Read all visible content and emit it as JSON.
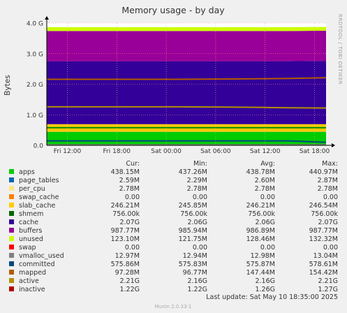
{
  "chart_data": {
    "type": "area",
    "title": "Memory usage - by day",
    "ylabel": "Bytes",
    "side_label": "RRDTOOL / TOBI OETIKER",
    "yticks": [
      "0.0",
      "1.0 G",
      "2.0 G",
      "3.0 G",
      "4.0 G"
    ],
    "ytick_values": [
      0,
      1,
      2,
      3,
      4
    ],
    "ylim": [
      0,
      4.0
    ],
    "xticks": [
      "Fri 12:00",
      "Fri 18:00",
      "Sat 00:00",
      "Sat 06:00",
      "Sat 12:00",
      "Sat 18:00"
    ],
    "xtick_hours": [
      12,
      18,
      24,
      30,
      36,
      42
    ],
    "xlim_hours": [
      9.5,
      43.4
    ],
    "series": [
      {
        "name": "apps",
        "color": "#00cc00",
        "kind": "area",
        "values_gb": [
          0.441,
          0.441,
          0.441,
          0.441,
          0.441,
          0.441,
          0.441,
          0.441
        ]
      },
      {
        "name": "page_tables",
        "color": "#0066b3",
        "kind": "area",
        "values_gb": [
          0.003,
          0.003,
          0.003,
          0.003,
          0.003,
          0.003,
          0.003,
          0.003
        ]
      },
      {
        "name": "per_cpu",
        "color": "#ff8000",
        "kind": "area",
        "values_gb": [
          0.003,
          0.003,
          0.003,
          0.003,
          0.003,
          0.003,
          0.003,
          0.003
        ]
      },
      {
        "name": "swap_cache",
        "color": "#ffcc00",
        "kind": "area",
        "values_gb": [
          0.0,
          0.0,
          0.0,
          0.0,
          0.0,
          0.0,
          0.0,
          0.0
        ]
      },
      {
        "name": "slab_cache",
        "color": "#ffcc00",
        "kind": "area",
        "values_gb": [
          0.245,
          0.245,
          0.245,
          0.245,
          0.245,
          0.245,
          0.245,
          0.245
        ]
      },
      {
        "name": "shmem",
        "color": "#330099",
        "kind": "area",
        "values_gb": [
          0.001,
          0.001,
          0.001,
          0.001,
          0.001,
          0.001,
          0.001,
          0.001
        ]
      },
      {
        "name": "cache",
        "color": "#330099",
        "kind": "area",
        "values_gb": [
          2.06,
          2.06,
          2.06,
          2.06,
          2.06,
          2.06,
          2.06,
          2.07
        ]
      },
      {
        "name": "buffers",
        "color": "#990099",
        "kind": "area",
        "values_gb": [
          0.986,
          0.986,
          0.986,
          0.986,
          0.986,
          0.986,
          0.986,
          0.988
        ]
      },
      {
        "name": "unused",
        "color": "#ccff00",
        "kind": "area",
        "values_gb": [
          0.127,
          0.127,
          0.127,
          0.127,
          0.127,
          0.127,
          0.127,
          0.123
        ]
      },
      {
        "name": "swap",
        "color": "#ff0000",
        "kind": "area",
        "values_gb": [
          0.0,
          0.0,
          0.0,
          0.0,
          0.0,
          0.0,
          0.0,
          0.0
        ]
      },
      {
        "name": "vmalloc_used",
        "color": "#808080",
        "kind": "line",
        "values_gb": [
          0.013,
          0.013,
          0.013,
          0.013,
          0.013,
          0.013,
          0.013,
          0.013
        ]
      },
      {
        "name": "committed",
        "color": "#008f00",
        "kind": "line",
        "values_gb": [
          0.576,
          0.576,
          0.576,
          0.576,
          0.576,
          0.576,
          0.576,
          0.576
        ]
      },
      {
        "name": "mapped",
        "color": "#00487d",
        "kind": "line",
        "values_gb": [
          0.147,
          0.147,
          0.147,
          0.147,
          0.147,
          0.147,
          0.147,
          0.097
        ]
      },
      {
        "name": "active",
        "color": "#b35a00",
        "kind": "line",
        "values_gb": [
          2.16,
          2.16,
          2.16,
          2.16,
          2.17,
          2.18,
          2.19,
          2.21
        ]
      },
      {
        "name": "inactive",
        "color": "#b38f00",
        "kind": "line",
        "values_gb": [
          1.26,
          1.26,
          1.26,
          1.26,
          1.25,
          1.24,
          1.23,
          1.22
        ]
      }
    ],
    "series_x_hours": [
      9.5,
      15,
      20,
      25,
      31,
      36,
      39,
      43.4
    ],
    "legend": {
      "headers": [
        "Cur:",
        "Min:",
        "Avg:",
        "Max:"
      ],
      "rows": [
        {
          "name": "apps",
          "color": "#00cc00",
          "cur": "438.15M",
          "min": "437.26M",
          "avg": "438.78M",
          "max": "440.97M"
        },
        {
          "name": "page_tables",
          "color": "#0066b3",
          "cur": "2.59M",
          "min": "2.29M",
          "avg": "2.60M",
          "max": "2.87M"
        },
        {
          "name": "per_cpu",
          "color": "#ffe680",
          "cur": "2.78M",
          "min": "2.78M",
          "avg": "2.78M",
          "max": "2.78M"
        },
        {
          "name": "swap_cache",
          "color": "#ff8000",
          "cur": "0.00",
          "min": "0.00",
          "avg": "0.00",
          "max": "0.00"
        },
        {
          "name": "slab_cache",
          "color": "#ffcc00",
          "cur": "246.21M",
          "min": "245.85M",
          "avg": "246.21M",
          "max": "246.54M"
        },
        {
          "name": "shmem",
          "color": "#006600",
          "cur": "756.00k",
          "min": "756.00k",
          "avg": "756.00k",
          "max": "756.00k"
        },
        {
          "name": "cache",
          "color": "#330099",
          "cur": "2.07G",
          "min": "2.06G",
          "avg": "2.06G",
          "max": "2.07G"
        },
        {
          "name": "buffers",
          "color": "#990099",
          "cur": "987.77M",
          "min": "985.94M",
          "avg": "986.89M",
          "max": "987.77M"
        },
        {
          "name": "unused",
          "color": "#ccff00",
          "cur": "123.10M",
          "min": "121.75M",
          "avg": "128.46M",
          "max": "132.32M"
        },
        {
          "name": "swap",
          "color": "#ff0000",
          "cur": "0.00",
          "min": "0.00",
          "avg": "0.00",
          "max": "0.00"
        },
        {
          "name": "vmalloc_used",
          "color": "#808080",
          "cur": "12.97M",
          "min": "12.94M",
          "avg": "12.98M",
          "max": "13.04M"
        },
        {
          "name": "committed",
          "color": "#00487d",
          "cur": "575.86M",
          "min": "575.83M",
          "avg": "575.87M",
          "max": "578.61M"
        },
        {
          "name": "mapped",
          "color": "#b35a00",
          "cur": "97.28M",
          "min": "96.77M",
          "avg": "147.44M",
          "max": "154.42M"
        },
        {
          "name": "active",
          "color": "#b38f00",
          "cur": "2.21G",
          "min": "2.16G",
          "avg": "2.16G",
          "max": "2.21G"
        },
        {
          "name": "inactive",
          "color": "#b30000",
          "cur": "1.22G",
          "min": "1.22G",
          "avg": "1.26G",
          "max": "1.27G"
        }
      ]
    },
    "last_update": "Last update:  Sat May 10 18:35:00 2025",
    "footer": "Munin 2.0.33-1"
  }
}
